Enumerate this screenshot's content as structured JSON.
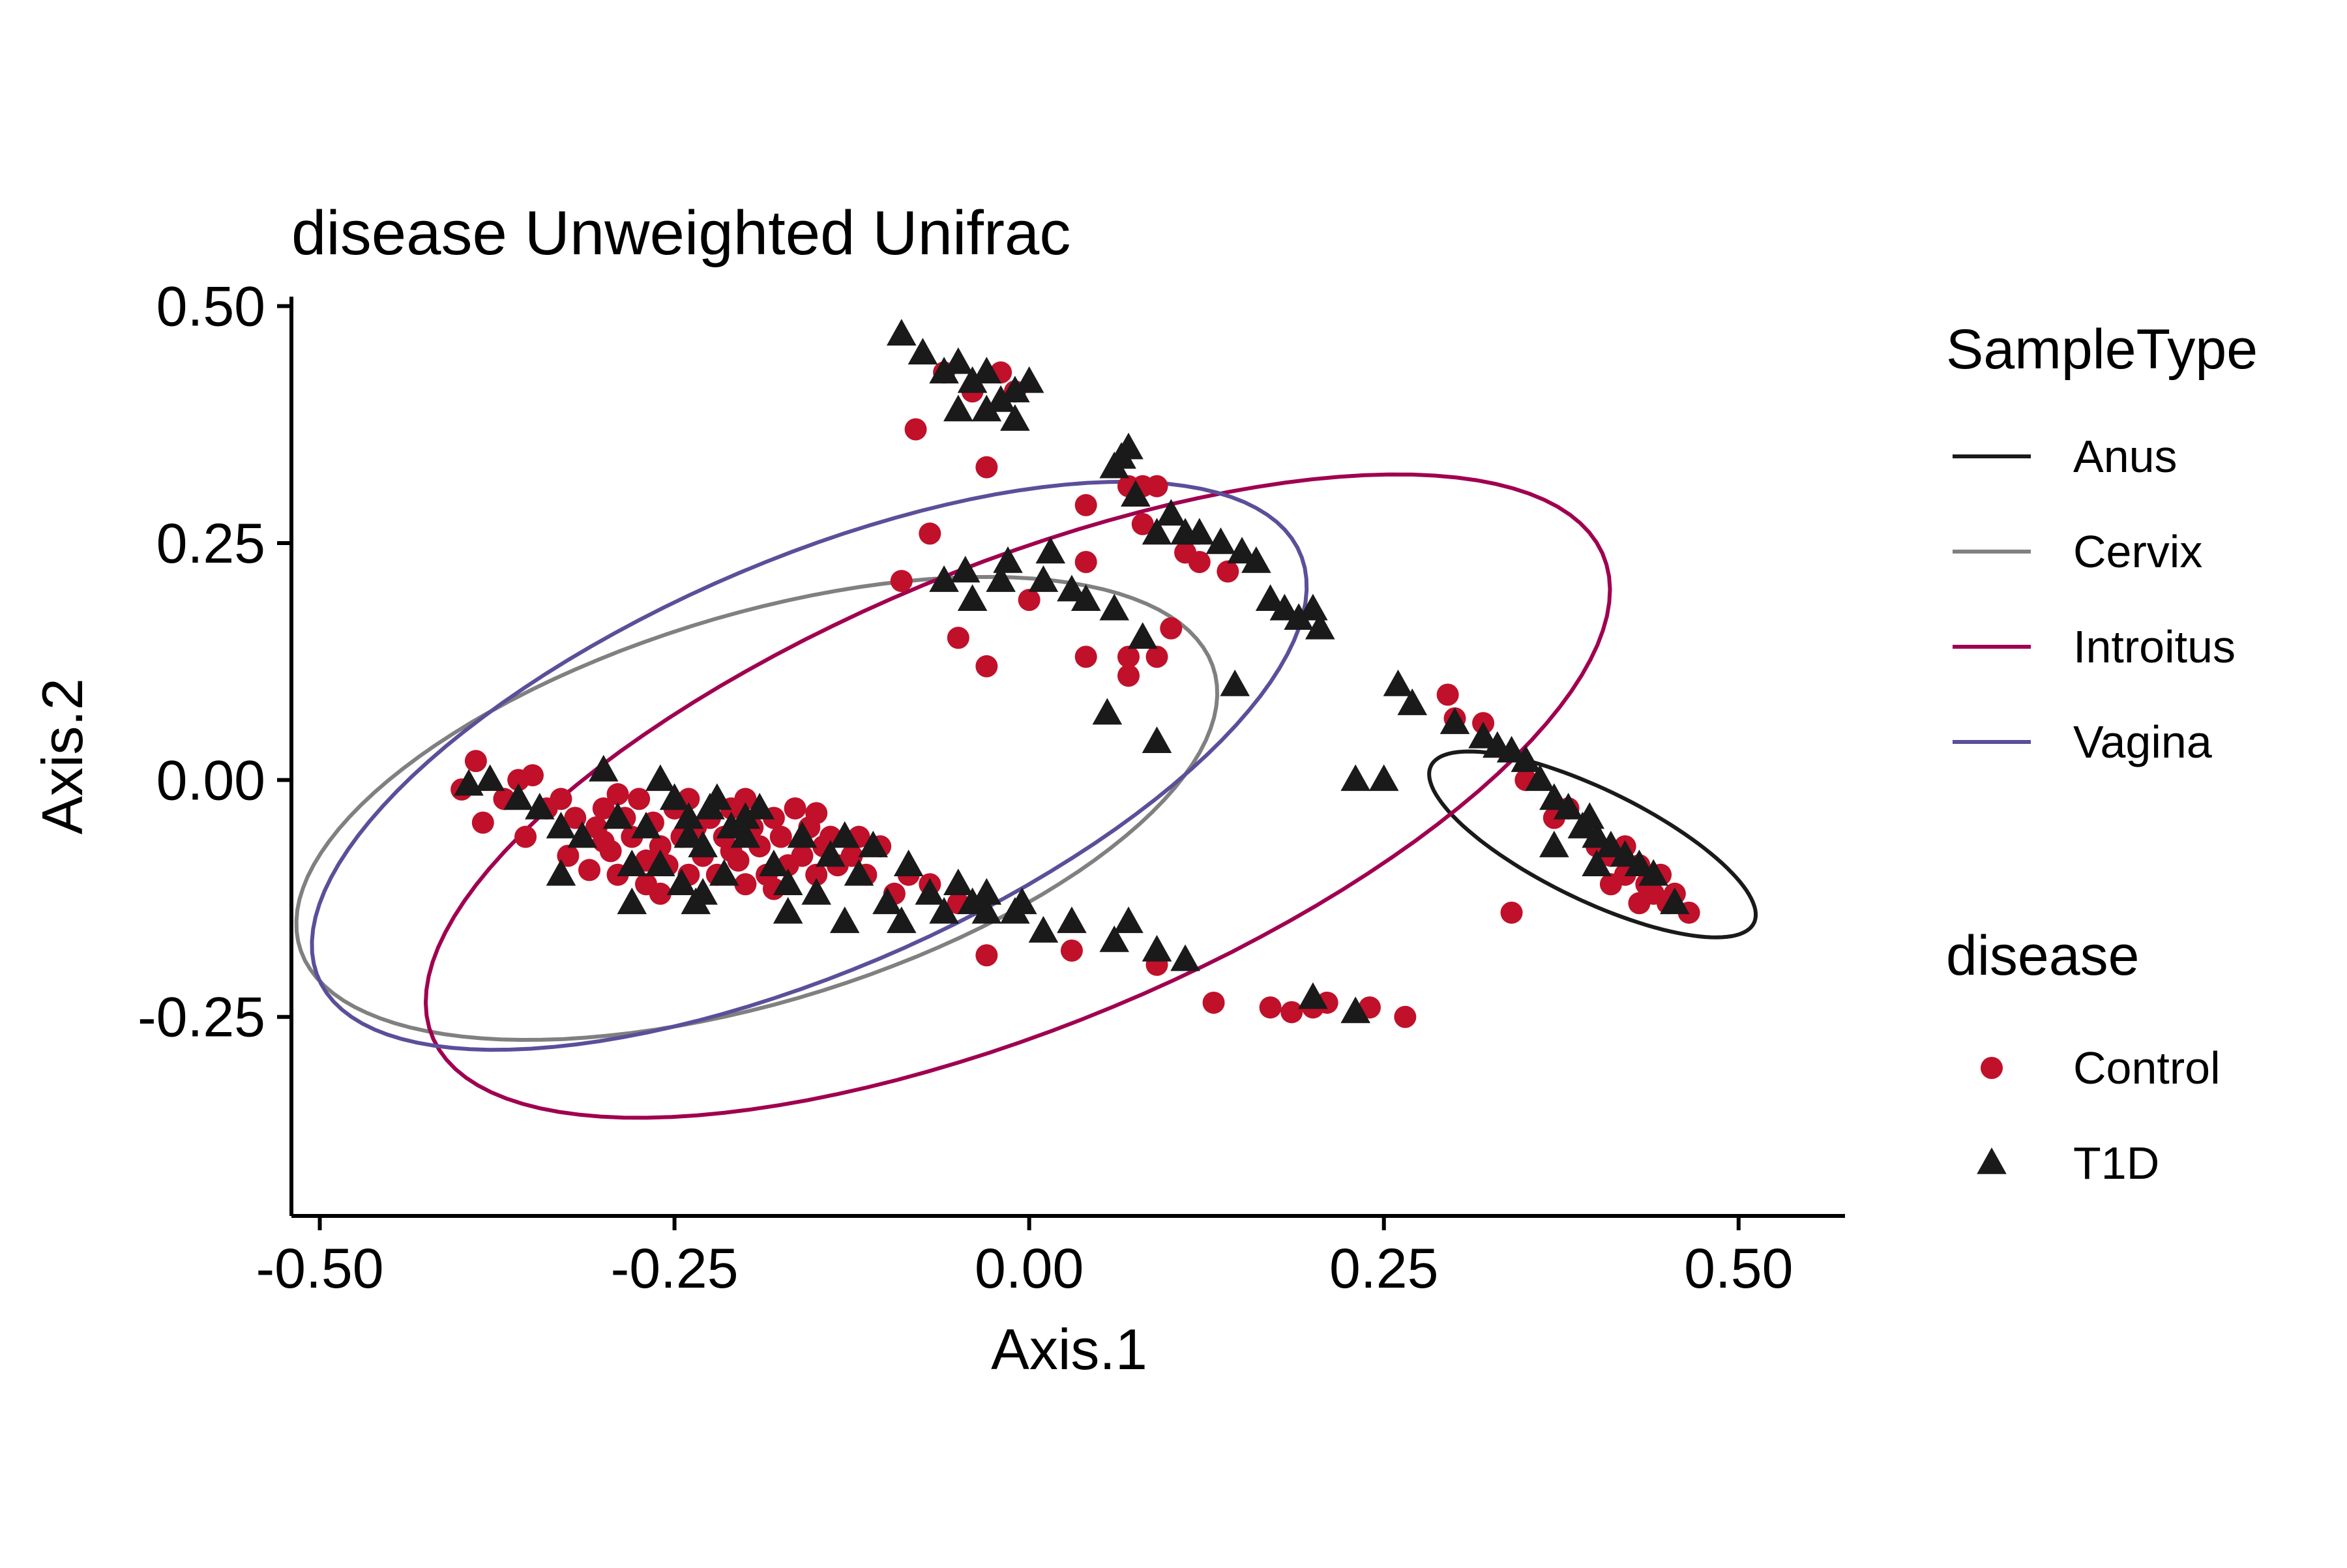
{
  "chart_data": {
    "type": "scatter",
    "title": "disease Unweighted Unifrac",
    "xlabel": "Axis.1",
    "ylabel": "Axis.2",
    "xlim": [
      -0.52,
      0.575
    ],
    "ylim": [
      -0.46,
      0.51
    ],
    "xticks": [
      -0.5,
      -0.25,
      0.0,
      0.25,
      0.5
    ],
    "xtick_labels": [
      "-0.50",
      "-0.25",
      "0.00",
      "0.25",
      "0.50"
    ],
    "yticks": [
      -0.25,
      0.0,
      0.25,
      0.5
    ],
    "ytick_labels": [
      "-0.25",
      "0.00",
      "0.25",
      "0.50"
    ],
    "grid": false,
    "legend_position": "right",
    "legends": [
      {
        "title": "SampleType",
        "kind": "line",
        "items": [
          {
            "label": "Anus",
            "color": "#1a1a1a"
          },
          {
            "label": "Cervix",
            "color": "#808080"
          },
          {
            "label": "Introitus",
            "color": "#a0004f"
          },
          {
            "label": "Vagina",
            "color": "#5b4f9a"
          }
        ]
      },
      {
        "title": "disease",
        "kind": "shape",
        "items": [
          {
            "label": "Control",
            "shape": "circle",
            "color": "#c0102a"
          },
          {
            "label": "T1D",
            "shape": "triangle",
            "color": "#1a1a1a"
          }
        ]
      }
    ],
    "ellipses": [
      {
        "group": "Anus",
        "color": "#1a1a1a",
        "center": [
          0.397,
          -0.068
        ],
        "semi_axes": [
          0.142,
          0.052
        ],
        "angle_deg": -39
      },
      {
        "group": "Cervix",
        "color": "#808080",
        "center": [
          -0.192,
          -0.03
        ],
        "semi_axes": [
          0.358,
          0.192
        ],
        "angle_deg": 30
      },
      {
        "group": "Introitus",
        "color": "#a0004f",
        "center": [
          -0.008,
          -0.017
        ],
        "semi_axes": [
          0.49,
          0.222
        ],
        "angle_deg": 36
      },
      {
        "group": "Vagina",
        "color": "#5b4f9a",
        "center": [
          -0.155,
          0.015
        ],
        "semi_axes": [
          0.418,
          0.195
        ],
        "angle_deg": 38
      }
    ],
    "series": [
      {
        "name": "Control",
        "shape": "circle",
        "color": "#c0102a",
        "points": [
          [
            -0.4,
            -0.01
          ],
          [
            -0.39,
            0.02
          ],
          [
            -0.385,
            -0.045
          ],
          [
            -0.37,
            -0.02
          ],
          [
            -0.36,
            0.0
          ],
          [
            -0.355,
            -0.06
          ],
          [
            -0.35,
            0.005
          ],
          [
            -0.34,
            -0.03
          ],
          [
            -0.33,
            -0.02
          ],
          [
            -0.325,
            -0.08
          ],
          [
            -0.32,
            -0.04
          ],
          [
            -0.31,
            -0.095
          ],
          [
            -0.305,
            -0.05
          ],
          [
            -0.3,
            -0.03
          ],
          [
            -0.295,
            -0.075
          ],
          [
            -0.29,
            -0.1
          ],
          [
            -0.285,
            -0.04
          ],
          [
            -0.28,
            -0.06
          ],
          [
            -0.275,
            -0.02
          ],
          [
            -0.27,
            -0.11
          ],
          [
            -0.265,
            -0.045
          ],
          [
            -0.26,
            -0.07
          ],
          [
            -0.255,
            -0.09
          ],
          [
            -0.25,
            -0.03
          ],
          [
            -0.245,
            -0.06
          ],
          [
            -0.24,
            -0.1
          ],
          [
            -0.235,
            -0.05
          ],
          [
            -0.23,
            -0.08
          ],
          [
            -0.225,
            -0.04
          ],
          [
            -0.22,
            -0.1
          ],
          [
            -0.215,
            -0.06
          ],
          [
            -0.21,
            -0.03
          ],
          [
            -0.205,
            -0.085
          ],
          [
            -0.2,
            -0.11
          ],
          [
            -0.195,
            -0.05
          ],
          [
            -0.19,
            -0.07
          ],
          [
            -0.185,
            -0.1
          ],
          [
            -0.18,
            -0.04
          ],
          [
            -0.175,
            -0.06
          ],
          [
            -0.17,
            -0.09
          ],
          [
            -0.165,
            -0.03
          ],
          [
            -0.16,
            -0.08
          ],
          [
            -0.155,
            -0.05
          ],
          [
            -0.15,
            -0.1
          ],
          [
            -0.145,
            -0.07
          ],
          [
            -0.14,
            -0.06
          ],
          [
            -0.135,
            -0.09
          ],
          [
            -0.125,
            -0.08
          ],
          [
            -0.115,
            -0.1
          ],
          [
            -0.105,
            -0.07
          ],
          [
            -0.095,
            -0.12
          ],
          [
            -0.085,
            -0.1
          ],
          [
            -0.07,
            -0.11
          ],
          [
            -0.05,
            -0.13
          ],
          [
            -0.3,
            -0.065
          ],
          [
            -0.27,
            -0.085
          ],
          [
            -0.24,
            -0.02
          ],
          [
            -0.21,
            -0.075
          ],
          [
            -0.18,
            -0.115
          ],
          [
            -0.15,
            -0.035
          ],
          [
            -0.12,
            -0.06
          ],
          [
            -0.29,
            -0.015
          ],
          [
            -0.26,
            -0.12
          ],
          [
            -0.2,
            -0.02
          ],
          [
            -0.06,
            0.43
          ],
          [
            -0.04,
            0.41
          ],
          [
            -0.03,
            0.33
          ],
          [
            -0.02,
            0.43
          ],
          [
            -0.01,
            0.41
          ],
          [
            -0.08,
            0.37
          ],
          [
            -0.07,
            0.26
          ],
          [
            -0.09,
            0.21
          ],
          [
            -0.05,
            0.15
          ],
          [
            -0.03,
            0.12
          ],
          [
            0.07,
            0.31
          ],
          [
            0.08,
            0.31
          ],
          [
            0.09,
            0.31
          ],
          [
            0.04,
            0.29
          ],
          [
            0.08,
            0.27
          ],
          [
            0.07,
            0.13
          ],
          [
            0.09,
            0.13
          ],
          [
            0.04,
            0.13
          ],
          [
            0.1,
            0.16
          ],
          [
            0.11,
            0.24
          ],
          [
            0.07,
            0.11
          ],
          [
            0.12,
            0.23
          ],
          [
            0.14,
            0.22
          ],
          [
            0.0,
            0.19
          ],
          [
            0.04,
            0.23
          ],
          [
            -0.03,
            -0.185
          ],
          [
            0.03,
            -0.18
          ],
          [
            0.09,
            -0.195
          ],
          [
            0.13,
            -0.235
          ],
          [
            0.185,
            -0.245
          ],
          [
            0.21,
            -0.235
          ],
          [
            0.2,
            -0.24
          ],
          [
            0.24,
            -0.24
          ],
          [
            0.265,
            -0.25
          ],
          [
            0.17,
            -0.24
          ],
          [
            0.295,
            0.09
          ],
          [
            0.3,
            0.065
          ],
          [
            0.32,
            0.06
          ],
          [
            0.34,
            -0.14
          ],
          [
            0.35,
            -0.0
          ],
          [
            0.37,
            -0.04
          ],
          [
            0.38,
            -0.03
          ],
          [
            0.4,
            -0.07
          ],
          [
            0.41,
            -0.08
          ],
          [
            0.42,
            -0.1
          ],
          [
            0.42,
            -0.07
          ],
          [
            0.43,
            -0.09
          ],
          [
            0.435,
            -0.11
          ],
          [
            0.44,
            -0.12
          ],
          [
            0.45,
            -0.13
          ],
          [
            0.465,
            -0.14
          ],
          [
            0.455,
            -0.12
          ],
          [
            0.43,
            -0.13
          ],
          [
            0.41,
            -0.11
          ],
          [
            0.445,
            -0.1
          ]
        ]
      },
      {
        "name": "T1D",
        "shape": "triangle",
        "color": "#1a1a1a",
        "points": [
          [
            -0.395,
            -0.005
          ],
          [
            -0.38,
            0.0
          ],
          [
            -0.36,
            -0.02
          ],
          [
            -0.345,
            -0.03
          ],
          [
            -0.33,
            -0.05
          ],
          [
            -0.315,
            -0.06
          ],
          [
            -0.3,
            0.01
          ],
          [
            -0.29,
            -0.04
          ],
          [
            -0.28,
            -0.09
          ],
          [
            -0.27,
            -0.05
          ],
          [
            -0.26,
            0.0
          ],
          [
            -0.25,
            -0.02
          ],
          [
            -0.245,
            -0.11
          ],
          [
            -0.24,
            -0.04
          ],
          [
            -0.235,
            -0.13
          ],
          [
            -0.23,
            -0.07
          ],
          [
            -0.225,
            -0.03
          ],
          [
            -0.22,
            -0.02
          ],
          [
            -0.215,
            -0.1
          ],
          [
            -0.21,
            -0.05
          ],
          [
            -0.2,
            -0.06
          ],
          [
            -0.19,
            -0.03
          ],
          [
            -0.18,
            -0.09
          ],
          [
            -0.17,
            -0.11
          ],
          [
            -0.16,
            -0.06
          ],
          [
            -0.15,
            -0.12
          ],
          [
            -0.14,
            -0.08
          ],
          [
            -0.13,
            -0.06
          ],
          [
            -0.12,
            -0.1
          ],
          [
            -0.11,
            -0.07
          ],
          [
            -0.1,
            -0.13
          ],
          [
            -0.09,
            -0.15
          ],
          [
            -0.085,
            -0.09
          ],
          [
            -0.07,
            -0.12
          ],
          [
            -0.06,
            -0.14
          ],
          [
            -0.05,
            -0.11
          ],
          [
            -0.04,
            -0.13
          ],
          [
            -0.03,
            -0.12
          ],
          [
            -0.01,
            -0.14
          ],
          [
            -0.005,
            -0.13
          ],
          [
            -0.33,
            -0.1
          ],
          [
            -0.28,
            -0.13
          ],
          [
            -0.23,
            -0.12
          ],
          [
            -0.17,
            -0.14
          ],
          [
            -0.13,
            -0.15
          ],
          [
            -0.2,
            -0.04
          ],
          [
            -0.24,
            -0.06
          ],
          [
            -0.26,
            -0.09
          ],
          [
            -0.09,
            0.47
          ],
          [
            -0.075,
            0.45
          ],
          [
            -0.06,
            0.43
          ],
          [
            -0.05,
            0.44
          ],
          [
            -0.04,
            0.42
          ],
          [
            -0.03,
            0.43
          ],
          [
            -0.02,
            0.4
          ],
          [
            -0.01,
            0.41
          ],
          [
            0.0,
            0.42
          ],
          [
            -0.05,
            0.39
          ],
          [
            -0.03,
            0.39
          ],
          [
            -0.01,
            0.38
          ],
          [
            -0.045,
            0.22
          ],
          [
            -0.06,
            0.21
          ],
          [
            -0.04,
            0.19
          ],
          [
            -0.02,
            0.21
          ],
          [
            -0.015,
            0.23
          ],
          [
            0.01,
            0.21
          ],
          [
            0.015,
            0.24
          ],
          [
            0.03,
            0.2
          ],
          [
            0.04,
            0.19
          ],
          [
            0.06,
            0.18
          ],
          [
            0.06,
            0.33
          ],
          [
            0.07,
            0.35
          ],
          [
            0.065,
            0.34
          ],
          [
            0.075,
            0.3
          ],
          [
            0.09,
            0.26
          ],
          [
            0.1,
            0.28
          ],
          [
            0.11,
            0.26
          ],
          [
            0.12,
            0.26
          ],
          [
            0.135,
            0.25
          ],
          [
            0.15,
            0.24
          ],
          [
            0.16,
            0.23
          ],
          [
            0.17,
            0.19
          ],
          [
            0.18,
            0.18
          ],
          [
            0.19,
            0.17
          ],
          [
            0.2,
            0.18
          ],
          [
            0.205,
            0.16
          ],
          [
            0.08,
            0.15
          ],
          [
            0.055,
            0.07
          ],
          [
            0.09,
            0.04
          ],
          [
            0.145,
            0.1
          ],
          [
            -0.03,
            -0.14
          ],
          [
            0.01,
            -0.16
          ],
          [
            0.03,
            -0.15
          ],
          [
            0.06,
            -0.17
          ],
          [
            0.07,
            -0.15
          ],
          [
            0.09,
            -0.18
          ],
          [
            0.11,
            -0.19
          ],
          [
            0.2,
            -0.23
          ],
          [
            0.23,
            -0.245
          ],
          [
            0.25,
            -0.0
          ],
          [
            0.23,
            0.0
          ],
          [
            0.26,
            0.1
          ],
          [
            0.27,
            0.08
          ],
          [
            0.3,
            0.06
          ],
          [
            0.32,
            0.045
          ],
          [
            0.33,
            0.035
          ],
          [
            0.34,
            0.03
          ],
          [
            0.35,
            0.02
          ],
          [
            0.36,
            0.0
          ],
          [
            0.37,
            -0.02
          ],
          [
            0.38,
            -0.03
          ],
          [
            0.39,
            -0.05
          ],
          [
            0.4,
            -0.06
          ],
          [
            0.41,
            -0.07
          ],
          [
            0.42,
            -0.08
          ],
          [
            0.43,
            -0.09
          ],
          [
            0.44,
            -0.1
          ],
          [
            0.455,
            -0.13
          ],
          [
            0.4,
            -0.09
          ],
          [
            0.395,
            -0.04
          ],
          [
            0.37,
            -0.07
          ]
        ]
      }
    ]
  }
}
